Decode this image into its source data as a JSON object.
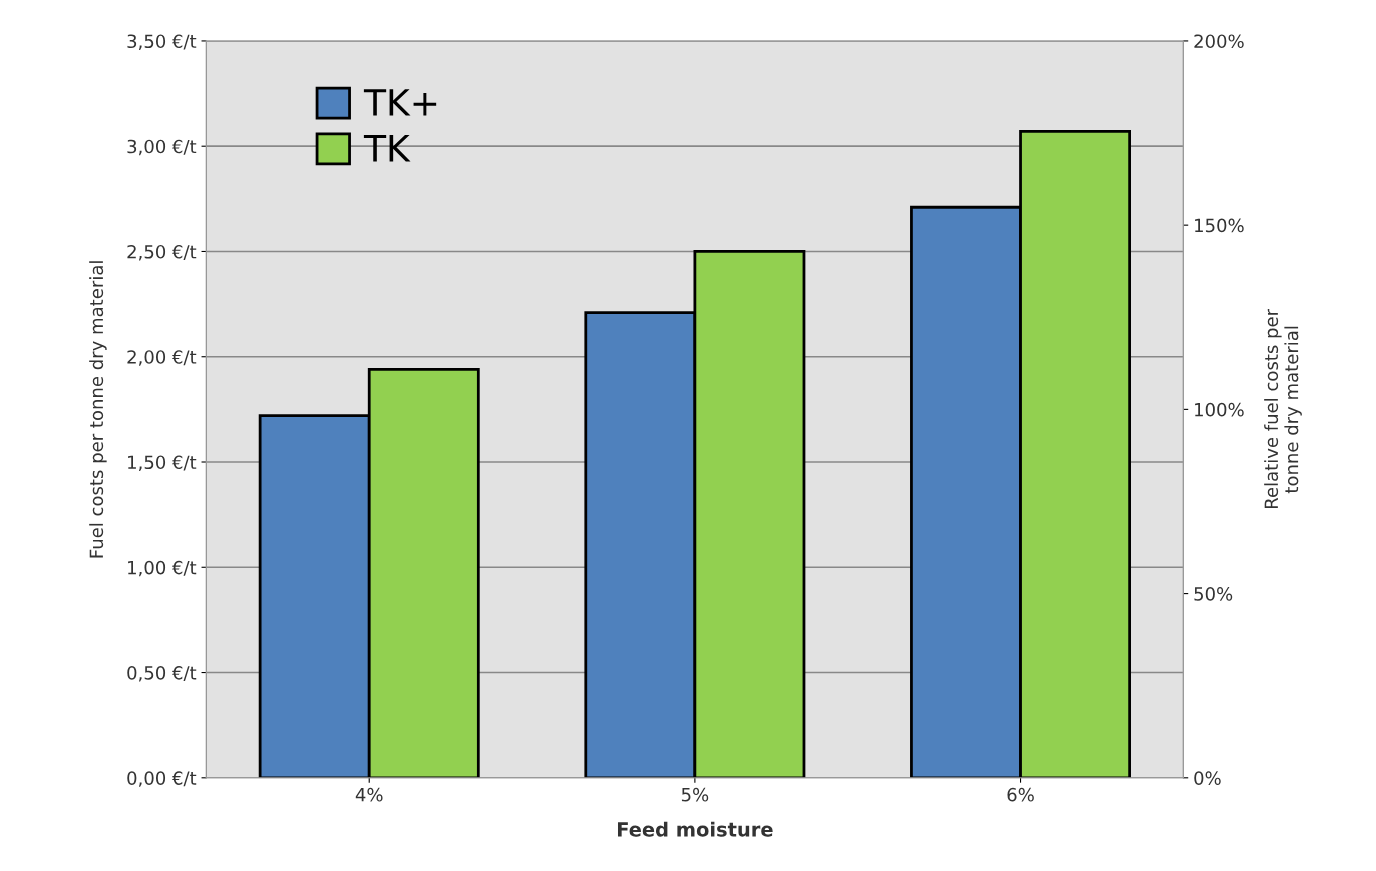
{
  "chart_data": {
    "type": "bar",
    "xlabel": "Feed moisture",
    "ylabel": "Fuel costs per tonne dry material",
    "y2label": "Relative fuel costs per\ntonne dry material",
    "categories": [
      "4%",
      "5%",
      "6%"
    ],
    "series": [
      {
        "name": "TK+",
        "color": "#4f81bd",
        "values": [
          1.72,
          2.21,
          2.71
        ]
      },
      {
        "name": "TK",
        "color": "#92d050",
        "values": [
          1.94,
          2.5,
          3.07
        ]
      }
    ],
    "ylim": [
      0,
      3.5
    ],
    "yticks": [
      {
        "value": 0,
        "label": "0,00 €/t"
      },
      {
        "value": 0.5,
        "label": "0,50 €/t"
      },
      {
        "value": 1,
        "label": "1,00 €/t"
      },
      {
        "value": 1.5,
        "label": "1,50 €/t"
      },
      {
        "value": 2,
        "label": "2,00 €/t"
      },
      {
        "value": 2.5,
        "label": "2,50 €/t"
      },
      {
        "value": 3,
        "label": "3,00 €/t"
      },
      {
        "value": 3.5,
        "label": "3,50 €/t"
      }
    ],
    "y2lim": [
      0,
      200
    ],
    "y2ticks": [
      {
        "value": 0,
        "label": "0%"
      },
      {
        "value": 50,
        "label": "50%"
      },
      {
        "value": 100,
        "label": "100%"
      },
      {
        "value": 150,
        "label": "150%"
      },
      {
        "value": 200,
        "label": "200%"
      }
    ],
    "grid": "y",
    "legend": "top left"
  }
}
